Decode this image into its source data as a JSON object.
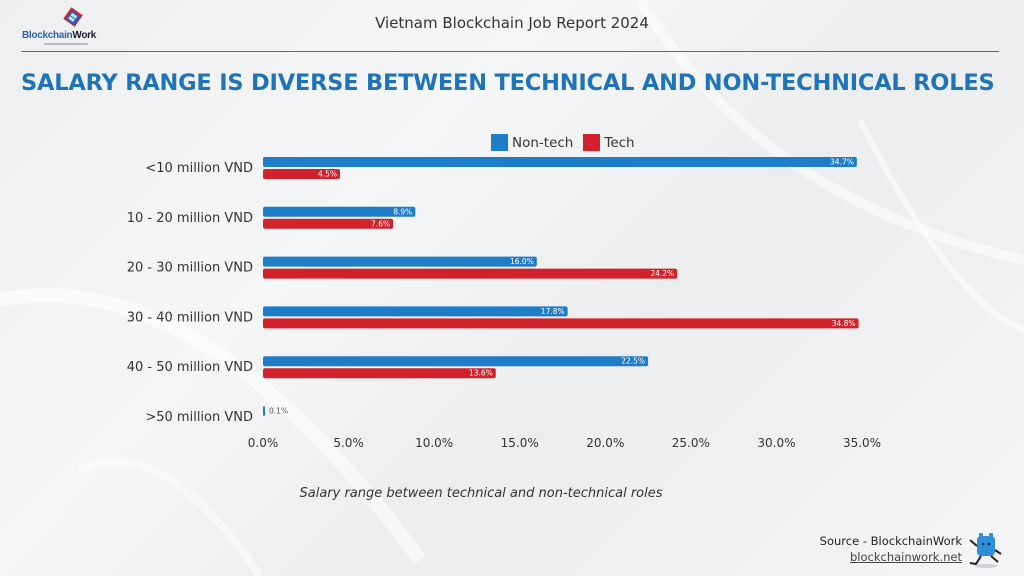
{
  "brand": {
    "name_part1": "Blockchain",
    "name_part2": "Work",
    "logo_icon": "blockchainwork-logo-icon"
  },
  "header": {
    "report_title": "Vietnam Blockchain Job Report 2024",
    "headline": "SALARY RANGE IS DIVERSE BETWEEN TECHNICAL AND NON-TECHNICAL ROLES"
  },
  "colors": {
    "nontech": "#1f7dc8",
    "tech": "#d1222b",
    "headline": "#1f73b9",
    "rule": "#3b6fb2"
  },
  "chart_data": {
    "type": "bar",
    "orientation": "horizontal",
    "title": "Salary range between technical and non-technical roles",
    "xlabel": "",
    "ylabel": "",
    "xlim": [
      0,
      35
    ],
    "x_ticks": [
      "0.0%",
      "5.0%",
      "10.0%",
      "15.0%",
      "20.0%",
      "25.0%",
      "30.0%",
      "35.0%"
    ],
    "x_tick_values": [
      0,
      5,
      10,
      15,
      20,
      25,
      30,
      35
    ],
    "grid": false,
    "legend_position": "top",
    "categories": [
      "<10 million VND",
      "10 - 20 million VND",
      "20 - 30 million VND",
      "30 - 40 million VND",
      "40 - 50 million VND",
      ">50 million VND"
    ],
    "series": [
      {
        "name": "Non-tech",
        "color": "#1f7dc8",
        "values": [
          34.7,
          8.9,
          16.0,
          17.8,
          22.5,
          0.1
        ],
        "labels": [
          "34.7%",
          "8.9%",
          "16.0%",
          "17.8%",
          "22.5%",
          "0.1%"
        ]
      },
      {
        "name": "Tech",
        "color": "#d1222b",
        "values": [
          4.5,
          7.6,
          24.2,
          34.8,
          13.6,
          null
        ],
        "labels": [
          "4.5%",
          "7.6%",
          "24.2%",
          "34.8%",
          "13.6%",
          ""
        ]
      }
    ]
  },
  "legend": {
    "items": [
      {
        "label": "Non-tech"
      },
      {
        "label": "Tech"
      }
    ]
  },
  "caption": "Salary range between technical and non-technical roles",
  "footer": {
    "source": "Source - BlockchainWork",
    "link": "blockchainwork.net",
    "mascot_icon": "mascot-icon"
  }
}
